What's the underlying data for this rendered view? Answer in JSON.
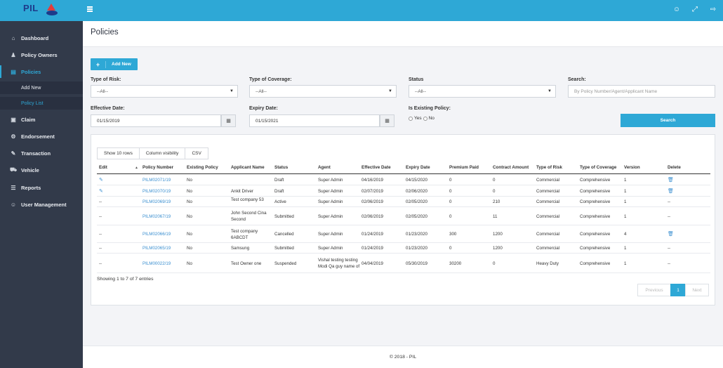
{
  "header": {
    "logo_text": "PIL",
    "icons": [
      "user-icon",
      "expand-icon",
      "logout-icon"
    ]
  },
  "sidebar": {
    "items": [
      {
        "label": "Dashboard",
        "icon": "home-icon"
      },
      {
        "label": "Policy Owners",
        "icon": "owners-icon"
      },
      {
        "label": "Policies",
        "icon": "policy-icon"
      },
      {
        "label": "Claim",
        "icon": "claim-icon"
      },
      {
        "label": "Endorsement",
        "icon": "gears-icon"
      },
      {
        "label": "Transaction",
        "icon": "transaction-icon"
      },
      {
        "label": "Vehicle",
        "icon": "car-icon"
      },
      {
        "label": "Reports",
        "icon": "layers-icon"
      },
      {
        "label": "User Management",
        "icon": "user-icon"
      }
    ],
    "policies_sub": [
      "Add New",
      "Policy List"
    ]
  },
  "page": {
    "title": "Policies",
    "add_new": "Add New"
  },
  "filters": {
    "type_of_risk_label": "Type of Risk:",
    "type_of_risk_value": "--All--",
    "type_of_coverage_label": "Type of Coverage:",
    "type_of_coverage_value": "--All--",
    "status_label": "Status",
    "status_value": "--All--",
    "search_label": "Search:",
    "search_placeholder": "By Policy Number/Agent/Applicant Name",
    "effective_date_label": "Effective Date:",
    "effective_date_value": "01/15/2019",
    "expiry_date_label": "Expiry Date:",
    "expiry_date_value": "01/15/2021",
    "existing_policy_label": "Is Existing Policy:",
    "yes": "Yes",
    "no": "No",
    "search_button": "Search"
  },
  "table_tools": [
    "Show 10 rows",
    "Column visibility",
    "CSV"
  ],
  "table": {
    "columns": [
      "Edit",
      "Policy Number",
      "Existing Policy",
      "Applicant Name",
      "Status",
      "Agent",
      "Effective Date",
      "Expiry Date",
      "Premium Paid",
      "Contract Amount",
      "Type of Risk",
      "Type of Coverage",
      "Version",
      "Delete"
    ],
    "rows": [
      {
        "edit": "✎",
        "policy": "PILM02071/19",
        "existing": "No",
        "applicant": "",
        "status": "Draft",
        "agent": "Super Admin",
        "effective": "04/16/2019",
        "expiry": "04/15/2020",
        "premium": "0",
        "contract": "0",
        "risk": "Commercial",
        "coverage": "Comprehensive",
        "version": "1",
        "delete": "🗑"
      },
      {
        "edit": "✎",
        "policy": "PILM02070/19",
        "existing": "No",
        "applicant": "Ankit Driver",
        "status": "Draft",
        "agent": "Super Admin",
        "effective": "02/07/2019",
        "expiry": "02/06/2020",
        "premium": "0",
        "contract": "0",
        "risk": "Commercial",
        "coverage": "Comprehensive",
        "version": "1",
        "delete": "🗑"
      },
      {
        "edit": "--",
        "policy": "PILM02069/19",
        "existing": "No",
        "applicant": "Test company 53",
        "status": "Active",
        "agent": "Super Admin",
        "effective": "02/06/2019",
        "expiry": "02/05/2020",
        "premium": "0",
        "contract": "210",
        "risk": "Commercial",
        "coverage": "Comprehensive",
        "version": "1",
        "delete": "--"
      },
      {
        "edit": "--",
        "policy": "PILM02067/19",
        "existing": "No",
        "applicant": "John Second Cina Second",
        "status": "Submitted",
        "agent": "Super Admin",
        "effective": "02/06/2019",
        "expiry": "02/05/2020",
        "premium": "0",
        "contract": "11",
        "risk": "Commercial",
        "coverage": "Comprehensive",
        "version": "1",
        "delete": "--"
      },
      {
        "edit": "--",
        "policy": "PILM02066/19",
        "existing": "No",
        "applicant": "Test company 6ABCDT",
        "status": "Cancelled",
        "agent": "Super Admin",
        "effective": "01/24/2019",
        "expiry": "01/23/2020",
        "premium": "300",
        "contract": "1200",
        "risk": "Commercial",
        "coverage": "Comprehensive",
        "version": "4",
        "delete": "🗑"
      },
      {
        "edit": "--",
        "policy": "PILM02065/19",
        "existing": "No",
        "applicant": "Samsung",
        "status": "Submitted",
        "agent": "Super Admin",
        "effective": "01/24/2019",
        "expiry": "01/23/2020",
        "premium": "0",
        "contract": "1200",
        "risk": "Commercial",
        "coverage": "Comprehensive",
        "version": "1",
        "delete": "--"
      },
      {
        "edit": "--",
        "policy": "PILM00022/19",
        "existing": "No",
        "applicant": "Test Owner one",
        "status": "Suspended",
        "agent": "Vishal testing testing Modi Qa guy name of",
        "effective": "04/04/2019",
        "expiry": "05/30/2019",
        "premium": "30200",
        "contract": "0",
        "risk": "Heavy Duty",
        "coverage": "Comprehensive",
        "version": "1",
        "delete": "--"
      }
    ]
  },
  "showing_text": "Showing 1 to 7 of 7 entries",
  "pagination": {
    "previous": "Previous",
    "current": "1",
    "next": "Next"
  },
  "footer": "© 2018 - PIL",
  "colors": {
    "accent": "#2ea8d6",
    "sidebar": "#323a4a",
    "link": "#3b8fd0"
  }
}
